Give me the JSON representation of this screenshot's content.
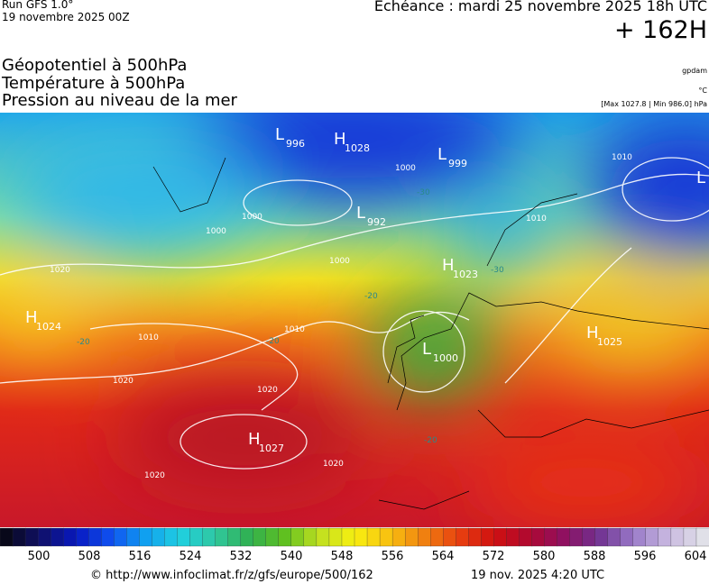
{
  "header": {
    "run": "Run GFS 1.0°",
    "date": "19 novembre 2025 00Z",
    "echeance": "Echéance : mardi 25 novembre 2025 18h UTC",
    "offset": "+ 162H",
    "fields": [
      "Géopotentiel à 500hPa",
      "Température à 500hPa",
      "Pression au niveau de la mer"
    ],
    "units": [
      "gpdam",
      "°C",
      "[Max 1027.8 | Min 986.0] hPa"
    ]
  },
  "map": {
    "centers": [
      {
        "type": "L",
        "value": "996"
      },
      {
        "type": "H",
        "value": "1028"
      },
      {
        "type": "L",
        "value": "999"
      },
      {
        "type": "L",
        "value": "992"
      },
      {
        "type": "H",
        "value": "1023"
      },
      {
        "type": "H",
        "value": "1024"
      },
      {
        "type": "L",
        "value": "1000"
      },
      {
        "type": "H",
        "value": "1025"
      },
      {
        "type": "H",
        "value": "1027"
      },
      {
        "type": "L",
        "value": ""
      }
    ],
    "isobar_labels": [
      "1000",
      "1000",
      "1000",
      "1000",
      "1010",
      "1010",
      "1020",
      "1010",
      "1020",
      "1020",
      "1020",
      "1020",
      "1010"
    ],
    "temperature_labels": [
      "-30",
      "-30",
      "-20",
      "-20",
      "-20",
      "-20"
    ]
  },
  "colorbar": {
    "labels": [
      500,
      508,
      516,
      524,
      532,
      540,
      548,
      556,
      564,
      572,
      580,
      588,
      596,
      604
    ]
  },
  "footer": {
    "url": "© http://www.infoclimat.fr/z/gfs/europe/500/162",
    "timestamp": "19 nov. 2025  4:20 UTC"
  }
}
